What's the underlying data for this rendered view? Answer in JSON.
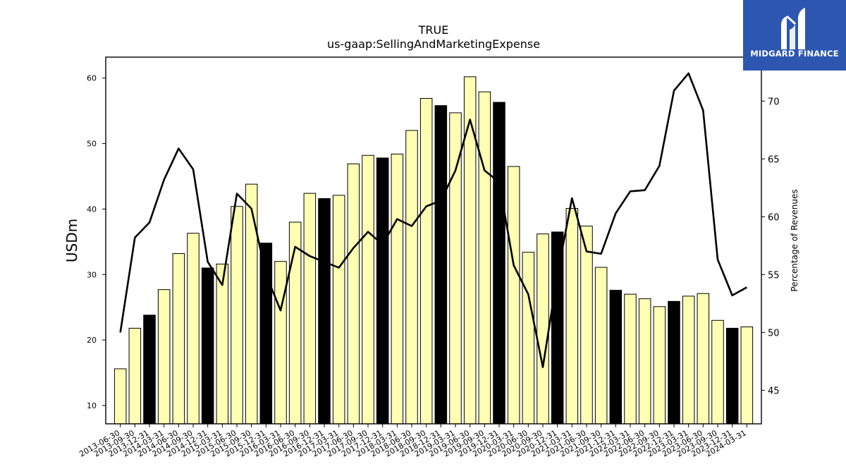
{
  "chart_data": {
    "type": "bar",
    "title": "TRUE",
    "subtitle": "us-gaap:SellingAndMarketingExpense",
    "ylabel": "USDm",
    "y2label": "Percentage of Revenues",
    "ylim": [
      7.2,
      63.2
    ],
    "y2lim": [
      42.1,
      73.8
    ],
    "yticks": [
      10,
      20,
      30,
      40,
      50,
      60
    ],
    "y2ticks": [
      45,
      50,
      55,
      60,
      65,
      70
    ],
    "categories": [
      "2013-06-30",
      "2013-09-30",
      "2013-12-31",
      "2014-03-31",
      "2014-06-30",
      "2014-09-30",
      "2014-12-31",
      "2015-03-31",
      "2015-06-30",
      "2015-09-30",
      "2015-12-31",
      "2016-03-31",
      "2016-06-30",
      "2016-09-30",
      "2016-12-31",
      "2017-03-31",
      "2017-06-30",
      "2017-09-30",
      "2017-12-31",
      "2018-03-31",
      "2018-06-30",
      "2018-09-30",
      "2018-12-31",
      "2019-03-31",
      "2019-06-30",
      "2019-09-30",
      "2019-12-31",
      "2020-03-31",
      "2020-06-30",
      "2020-09-30",
      "2020-12-31",
      "2021-03-31",
      "2021-06-30",
      "2021-09-30",
      "2021-12-31",
      "2022-03-31",
      "2022-06-30",
      "2022-09-30",
      "2022-12-31",
      "2023-03-31",
      "2023-06-30",
      "2023-09-30",
      "2023-12-31",
      "2024-03-31"
    ],
    "series": [
      {
        "kind": "bar",
        "values": [
          15.6,
          21.8,
          23.8,
          27.7,
          33.2,
          36.3,
          31.0,
          31.6,
          40.4,
          43.8,
          34.8,
          32.0,
          38.0,
          42.4,
          41.6,
          42.1,
          46.9,
          48.2,
          47.8,
          48.4,
          52.0,
          56.9,
          55.8,
          54.7,
          60.2,
          57.9,
          56.3,
          46.5,
          33.4,
          36.2,
          36.5,
          40.1,
          37.4,
          31.1,
          27.6,
          27.0,
          26.3,
          25.1,
          25.9,
          26.7,
          27.1,
          23.0,
          21.8,
          22.0
        ],
        "highlight": [
          false,
          false,
          true,
          false,
          false,
          false,
          true,
          false,
          false,
          false,
          true,
          false,
          false,
          false,
          true,
          false,
          false,
          false,
          true,
          false,
          false,
          false,
          true,
          false,
          false,
          false,
          true,
          false,
          false,
          false,
          true,
          false,
          false,
          false,
          true,
          false,
          false,
          false,
          true,
          false,
          false,
          false,
          true,
          false
        ],
        "color": "#ffffb3",
        "highlight_color": "#000000"
      },
      {
        "kind": "line",
        "axis": "right",
        "values": [
          50.0,
          58.2,
          59.5,
          63.2,
          65.9,
          64.1,
          56.1,
          54.1,
          62.0,
          60.7,
          55.0,
          51.9,
          57.4,
          56.6,
          56.1,
          55.6,
          57.3,
          58.7,
          57.6,
          59.8,
          59.2,
          60.9,
          61.4,
          64.0,
          68.4,
          64.0,
          63.0,
          55.8,
          53.3,
          47.0,
          55.0,
          61.6,
          57.0,
          56.8,
          60.3,
          62.2,
          62.3,
          64.4,
          70.9,
          72.4,
          69.2,
          56.3,
          53.2,
          53.9
        ],
        "color": "#000000"
      }
    ]
  },
  "logo": {
    "text": "MIDGARD FINANCE"
  }
}
